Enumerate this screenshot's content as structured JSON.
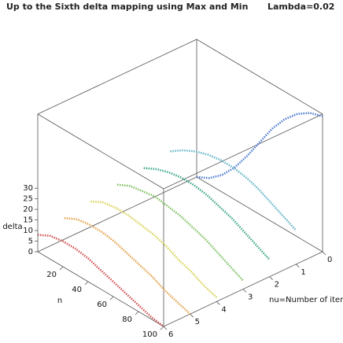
{
  "chart_data": {
    "type": "line3d",
    "title": "Up to the Sixth delta mapping using Max and Min",
    "subtitle": "Lambda=0.02",
    "xlabel": "n",
    "ylabel": "nu=Number of iteration",
    "zlabel": "delta",
    "x": [
      0,
      10,
      20,
      30,
      40,
      50,
      60,
      70,
      80,
      90,
      100
    ],
    "xlim": [
      0,
      100
    ],
    "xticks": [
      20,
      40,
      60,
      80,
      100
    ],
    "ylim": [
      0,
      6
    ],
    "yticks": [
      0,
      1,
      2,
      3,
      4,
      5,
      6
    ],
    "zlim": [
      0,
      65
    ],
    "zticks": [
      0,
      5,
      10,
      15,
      20,
      25,
      30
    ],
    "series": [
      {
        "color": "#4a78d0",
        "nu": 0,
        "values": [
          0,
          3,
          8,
          15,
          24,
          34,
          44,
          52,
          58,
          62,
          64
        ]
      },
      {
        "color": "#5fb2c8",
        "nu": 1,
        "values": [
          18,
          22,
          25,
          27,
          28,
          28,
          27,
          25,
          22,
          19,
          16
        ]
      },
      {
        "color": "#3aa58a",
        "nu": 2,
        "values": [
          16,
          19,
          21,
          22,
          22,
          21,
          19,
          17,
          14,
          11,
          8
        ]
      },
      {
        "color": "#7cc060",
        "nu": 3,
        "values": [
          14,
          17,
          18,
          19,
          18,
          17,
          15,
          13,
          10,
          7,
          4
        ]
      },
      {
        "color": "#d8d050",
        "nu": 4,
        "values": [
          12,
          15,
          16,
          16,
          15,
          14,
          12,
          9,
          7,
          4,
          2
        ]
      },
      {
        "color": "#e3a048",
        "nu": 5,
        "values": [
          10,
          13,
          14,
          14,
          13,
          11,
          9,
          7,
          4,
          2,
          0
        ]
      },
      {
        "color": "#d05050",
        "nu": 6,
        "values": [
          8,
          11,
          12,
          12,
          11,
          9,
          7,
          5,
          3,
          1,
          0
        ]
      }
    ]
  }
}
